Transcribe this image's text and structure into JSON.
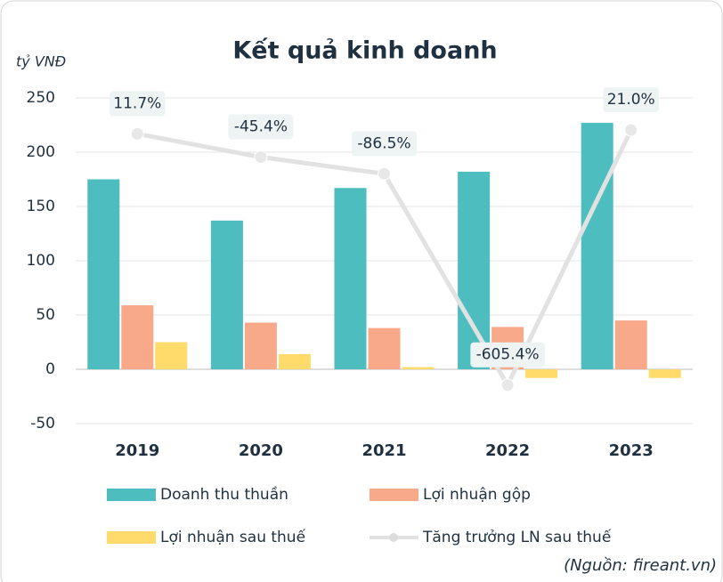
{
  "chart_data": {
    "type": "bar",
    "title": "Kết quả kinh doanh",
    "y_label": "tỷ VNĐ",
    "source": "(Nguồn: fireant.vn)",
    "categories": [
      "2019",
      "2020",
      "2021",
      "2022",
      "2023"
    ],
    "series": [
      {
        "name": "Doanh thu thuần",
        "color": "#4dbdc0",
        "values": [
          175,
          137,
          167,
          182,
          227
        ]
      },
      {
        "name": "Lợi nhuận gộp",
        "color": "#f7a98a",
        "values": [
          59,
          43,
          38,
          39,
          45
        ]
      },
      {
        "name": "Lợi nhuận sau thuế",
        "color": "#fedb6a",
        "values": [
          25,
          14,
          2,
          -8,
          -8
        ]
      },
      {
        "name": "Tăng trưởng LN sau thuế",
        "type": "line",
        "axis": "y2",
        "color": "#e2e2e2",
        "values": [
          11.7,
          -45.4,
          -86.5,
          -605.4,
          21.0
        ],
        "value_labels": [
          "11.7%",
          "-45.4%",
          "-86.5%",
          "-605.4%",
          "21.0%"
        ]
      }
    ],
    "ylim": [
      -50,
      250
    ],
    "yticks": [
      -50,
      0,
      50,
      100,
      150,
      200,
      250
    ],
    "y2lim": [
      -700,
      100
    ],
    "grid": true
  }
}
